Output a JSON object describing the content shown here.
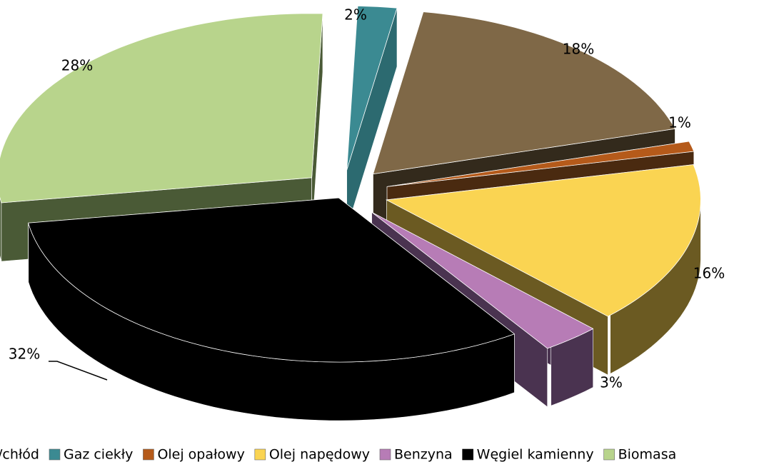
{
  "chart_data": {
    "type": "pie",
    "variant": "3d-exploded",
    "legend_position": "bottom",
    "slices": [
      {
        "name": "Gaz ciekły",
        "value": 2,
        "label": "2%",
        "color": "#3B8A92",
        "dark": "#2C6A70"
      },
      {
        "name": "",
        "value": 18,
        "label": "18%",
        "color": "#7F6847",
        "dark": "#332A1C"
      },
      {
        "name": "Olej opałowy",
        "value": 1,
        "label": "1%",
        "color": "#B55A1A",
        "dark": "#4A2A10"
      },
      {
        "name": "Olej napędowy",
        "value": 16,
        "label": "16%",
        "color": "#FAD452",
        "dark": "#6B5A22"
      },
      {
        "name": "Benzyna",
        "value": 3,
        "label": "3%",
        "color": "#B77CB6",
        "dark": "#4A3350"
      },
      {
        "name": "Węgiel kamienny",
        "value": 32,
        "label": "32%",
        "color": "#000000",
        "dark": "#000000"
      },
      {
        "name": "Biomasa",
        "value": 28,
        "label": "28%",
        "color": "#B8D48C",
        "dark": "#4A5A36"
      }
    ],
    "legend_entries": [
      {
        "text": "/chłód",
        "color": ""
      },
      {
        "text": "Gaz ciekły",
        "color": "#3B8A92"
      },
      {
        "text": "Olej opałowy",
        "color": "#B55A1A"
      },
      {
        "text": "Olej napędowy",
        "color": "#FAD452"
      },
      {
        "text": "Benzyna",
        "color": "#B77CB6"
      },
      {
        "text": "Węgiel kamienny",
        "color": "#000000"
      },
      {
        "text": "Biomasa",
        "color": "#B8D48C"
      }
    ]
  }
}
